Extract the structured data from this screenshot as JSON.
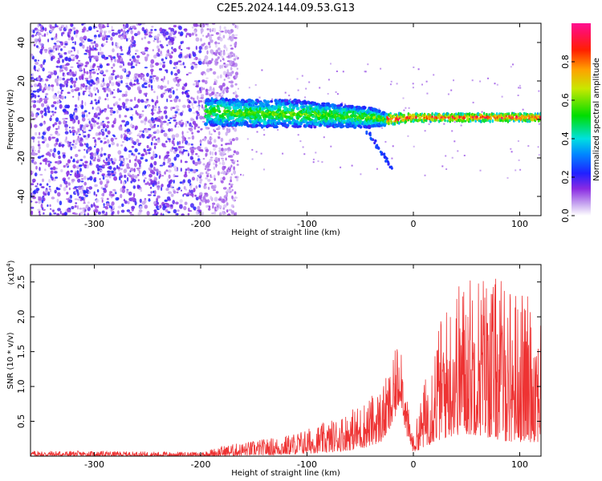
{
  "title": "C2E5.2024.144.09.53.G13",
  "chart_data": [
    {
      "type": "heatmap",
      "xlabel": "Height of straight line (km)",
      "ylabel": "Frequency (Hz)",
      "xlim": [
        -360,
        120
      ],
      "ylim": [
        -50,
        50
      ],
      "x_ticks": [
        -300,
        -200,
        -100,
        0,
        100
      ],
      "y_ticks": [
        -40,
        -20,
        0,
        20,
        40
      ],
      "colorbar": {
        "label": "Normalized spectral amplitude",
        "range": [
          0.0,
          1.0
        ],
        "ticks": [
          "0.0",
          "0.2",
          "0.4",
          "0.6",
          "0.8"
        ],
        "colormap": "rainbow (white-violet-blue-cyan-green-yellow-orange-red-magenta)"
      },
      "signal_band": [
        {
          "x": -190,
          "freq": 4,
          "spread": 7
        },
        {
          "x": -150,
          "freq": 3,
          "spread": 7
        },
        {
          "x": -110,
          "freq": 3,
          "spread": 7
        },
        {
          "x": -75,
          "freq": 2,
          "spread": 6
        },
        {
          "x": -40,
          "freq": 1,
          "spread": 5
        },
        {
          "x": -25,
          "freq": 0,
          "spread": 3
        },
        {
          "x": 0,
          "freq": 1,
          "spread": 2
        },
        {
          "x": 50,
          "freq": 1,
          "spread": 2
        },
        {
          "x": 120,
          "freq": 1,
          "spread": 2
        }
      ],
      "noise_region": [
        -360,
        -180
      ]
    },
    {
      "type": "line",
      "xlabel": "Height of straight line (km)",
      "ylabel": "SNR (10 * v/v)",
      "y_multiplier": "(x10",
      "y_multiplier_exp": "4",
      "y_multiplier_close": ")",
      "xlim": [
        -360,
        120
      ],
      "ylim": [
        0,
        2.75
      ],
      "x_ticks": [
        -300,
        -200,
        -100,
        0,
        100
      ],
      "y_ticks": [
        "0.5",
        "1.0",
        "1.5",
        "2.0",
        "2.5"
      ],
      "line_color": "#ee3333",
      "envelope": [
        {
          "x": -360,
          "low": 0.0,
          "high": 0.08
        },
        {
          "x": -200,
          "low": 0.0,
          "high": 0.06
        },
        {
          "x": -180,
          "low": 0.0,
          "high": 0.15
        },
        {
          "x": -120,
          "low": 0.02,
          "high": 0.3
        },
        {
          "x": -80,
          "low": 0.05,
          "high": 0.5
        },
        {
          "x": -50,
          "low": 0.1,
          "high": 0.75
        },
        {
          "x": -30,
          "low": 0.2,
          "high": 1.0
        },
        {
          "x": -20,
          "low": 0.4,
          "high": 1.3
        },
        {
          "x": -12,
          "low": 0.8,
          "high": 1.9
        },
        {
          "x": -7,
          "low": 0.3,
          "high": 0.9
        },
        {
          "x": 0,
          "low": 0.05,
          "high": 0.3
        },
        {
          "x": 20,
          "low": 0.2,
          "high": 1.8
        },
        {
          "x": 40,
          "low": 0.3,
          "high": 2.5
        },
        {
          "x": 60,
          "low": 0.3,
          "high": 2.75
        },
        {
          "x": 90,
          "low": 0.2,
          "high": 2.5
        },
        {
          "x": 120,
          "low": 0.2,
          "high": 2.2
        }
      ]
    }
  ]
}
